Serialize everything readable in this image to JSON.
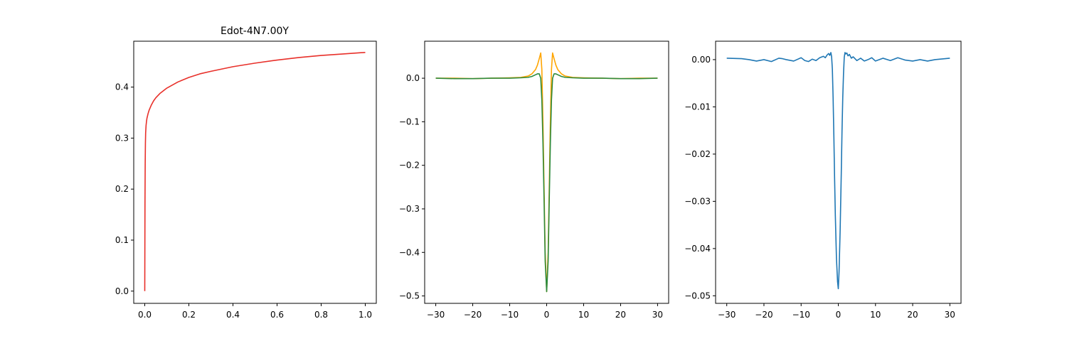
{
  "chart_data": [
    {
      "type": "line",
      "title": "Edot-4N7.00Y",
      "xlabel": "",
      "ylabel": "",
      "xlim": [
        -0.05,
        1.05
      ],
      "ylim": [
        -0.024,
        0.49
      ],
      "xticks": [
        0.0,
        0.2,
        0.4,
        0.6,
        0.8,
        1.0
      ],
      "xtick_labels": [
        "0.0",
        "0.2",
        "0.4",
        "0.6",
        "0.8",
        "1.0"
      ],
      "yticks": [
        0.0,
        0.1,
        0.2,
        0.3,
        0.4
      ],
      "ytick_labels": [
        "0.0",
        "0.1",
        "0.2",
        "0.3",
        "0.4"
      ],
      "grid": false,
      "series": [
        {
          "color": "#e8302a",
          "x": [
            0.0,
            0.001,
            0.002,
            0.003,
            0.004,
            0.006,
            0.008,
            0.01,
            0.015,
            0.02,
            0.03,
            0.04,
            0.05,
            0.07,
            0.1,
            0.15,
            0.2,
            0.25,
            0.3,
            0.4,
            0.5,
            0.6,
            0.7,
            0.8,
            0.9,
            1.0
          ],
          "y": [
            0.0,
            0.17,
            0.25,
            0.29,
            0.31,
            0.325,
            0.333,
            0.339,
            0.348,
            0.355,
            0.365,
            0.373,
            0.379,
            0.388,
            0.398,
            0.41,
            0.419,
            0.426,
            0.431,
            0.44,
            0.447,
            0.453,
            0.458,
            0.462,
            0.465,
            0.468
          ]
        }
      ]
    },
    {
      "type": "line",
      "title": "",
      "xlabel": "",
      "ylabel": "",
      "xlim": [
        -33,
        33
      ],
      "ylim": [
        -0.517,
        0.085
      ],
      "xticks": [
        -30,
        -20,
        -10,
        0,
        10,
        20,
        30
      ],
      "xtick_labels": [
        "−30",
        "−20",
        "−10",
        "0",
        "10",
        "20",
        "30"
      ],
      "yticks": [
        0.0,
        -0.1,
        -0.2,
        -0.3,
        -0.4,
        -0.5
      ],
      "ytick_labels": [
        "0.0",
        "−0.1",
        "−0.2",
        "−0.3",
        "−0.4",
        "−0.5"
      ],
      "grid": false,
      "series": [
        {
          "color": "#ffa500",
          "x": [
            -30,
            -25,
            -20,
            -15,
            -10,
            -7,
            -5,
            -4,
            -3,
            -2.5,
            -2,
            -1.6,
            -1.3,
            -1,
            -0.7,
            -0.4,
            0,
            0.4,
            0.7,
            1,
            1.3,
            1.6,
            2,
            2.5,
            3,
            4,
            5,
            7,
            10,
            15,
            20,
            25,
            30
          ],
          "y": [
            0.0,
            0.0,
            -0.001,
            0.0,
            0.001,
            0.002,
            0.005,
            0.01,
            0.02,
            0.03,
            0.045,
            0.058,
            0.02,
            -0.1,
            -0.25,
            -0.4,
            -0.49,
            -0.4,
            -0.25,
            -0.1,
            0.02,
            0.058,
            0.045,
            0.03,
            0.02,
            0.01,
            0.005,
            0.002,
            0.001,
            0.0,
            -0.001,
            0.0,
            0.0
          ]
        },
        {
          "color": "#2e8b3e",
          "x": [
            -30,
            -25,
            -20,
            -15,
            -10,
            -7,
            -5,
            -4,
            -3,
            -2.5,
            -2,
            -1.6,
            -1.3,
            -1,
            -0.7,
            -0.4,
            0,
            0.4,
            0.7,
            1,
            1.3,
            1.6,
            2,
            2.5,
            3,
            4,
            5,
            7,
            10,
            15,
            20,
            25,
            30
          ],
          "y": [
            0.0,
            -0.001,
            -0.001,
            0.0,
            0.0,
            0.001,
            0.002,
            0.004,
            0.008,
            0.01,
            0.01,
            0.0,
            -0.05,
            -0.15,
            -0.28,
            -0.42,
            -0.49,
            -0.42,
            -0.28,
            -0.15,
            -0.05,
            0.0,
            0.01,
            0.01,
            0.008,
            0.004,
            0.002,
            0.001,
            0.0,
            0.0,
            -0.001,
            -0.001,
            0.0
          ]
        }
      ]
    },
    {
      "type": "line",
      "title": "",
      "xlabel": "",
      "ylabel": "",
      "xlim": [
        -33,
        33
      ],
      "ylim": [
        -0.0516,
        0.0039
      ],
      "xticks": [
        -30,
        -20,
        -10,
        0,
        10,
        20,
        30
      ],
      "xtick_labels": [
        "−30",
        "−20",
        "−10",
        "0",
        "10",
        "20",
        "30"
      ],
      "yticks": [
        0.0,
        -0.01,
        -0.02,
        -0.03,
        -0.04,
        -0.05
      ],
      "ytick_labels": [
        "0.00",
        "−0.01",
        "−0.02",
        "−0.03",
        "−0.04",
        "−0.05"
      ],
      "grid": false,
      "series": [
        {
          "color": "#1f77b4",
          "x": [
            -30,
            -26,
            -24,
            -22,
            -20,
            -18,
            -16,
            -15,
            -14,
            -12,
            -10,
            -9,
            -8,
            -7,
            -6,
            -5,
            -4,
            -3.5,
            -3,
            -2.6,
            -2.3,
            -2,
            -1.8,
            -1.6,
            -1.4,
            -1.2,
            -1,
            -0.8,
            -0.5,
            -0.2,
            0,
            0.2,
            0.5,
            0.8,
            1,
            1.2,
            1.4,
            1.6,
            1.8,
            2,
            2.3,
            2.6,
            3,
            3.5,
            4,
            5,
            6,
            7,
            8,
            9,
            10,
            12,
            14,
            16,
            18,
            20,
            22,
            24,
            26,
            30
          ],
          "y": [
            0.0003,
            0.0002,
            0.0,
            -0.0003,
            0.0,
            -0.0004,
            0.0003,
            0.0002,
            0.0,
            -0.0003,
            0.0004,
            -0.0002,
            -0.0004,
            0.0001,
            -0.0002,
            0.0004,
            0.0007,
            0.0004,
            0.001,
            0.0013,
            0.0009,
            0.0015,
            0.0006,
            -0.002,
            -0.008,
            -0.016,
            -0.025,
            -0.033,
            -0.042,
            -0.047,
            -0.0485,
            -0.045,
            -0.036,
            -0.024,
            -0.015,
            -0.008,
            -0.003,
            0.0005,
            0.0015,
            0.0012,
            0.0014,
            0.0008,
            0.0011,
            0.0003,
            0.0006,
            -0.0002,
            0.0003,
            -0.0003,
            0.0,
            0.0004,
            -0.0003,
            0.0003,
            -0.0002,
            0.0004,
            -0.0001,
            -0.0003,
            0.0,
            -0.0003,
            0.0,
            0.0003
          ]
        }
      ]
    }
  ]
}
